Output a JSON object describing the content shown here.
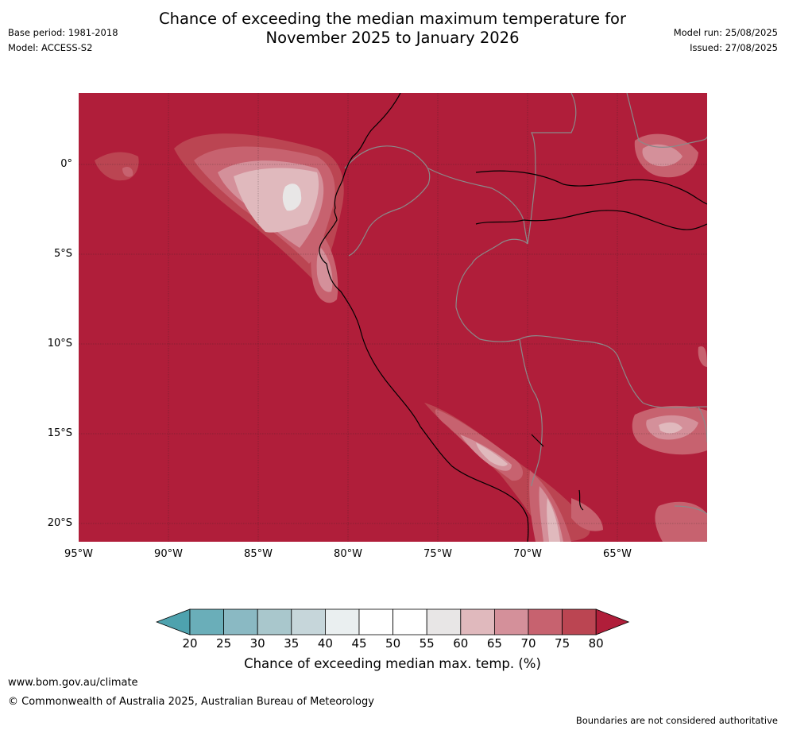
{
  "title_line1": "Chance of exceeding the median maximum temperature for",
  "title_line2": "November 2025 to January 2026",
  "meta_left": {
    "base_period": "Base period: 1981-2018",
    "model": "Model: ACCESS-S2"
  },
  "meta_right": {
    "model_run": "Model run: 25/08/2025",
    "issued": "Issued: 27/08/2025"
  },
  "lat_labels": [
    "0°",
    "5°S",
    "10°S",
    "15°S",
    "20°S"
  ],
  "lon_labels": [
    "95°W",
    "90°W",
    "85°W",
    "80°W",
    "75°W",
    "70°W",
    "65°W"
  ],
  "colorbar": {
    "ticks": [
      "20",
      "25",
      "30",
      "35",
      "40",
      "45",
      "50",
      "55",
      "60",
      "65",
      "70",
      "75",
      "80"
    ],
    "colors": [
      "#4ea2ae",
      "#6aaeb9",
      "#8ab9c3",
      "#a9c7cc",
      "#c6d6da",
      "#eaeff0",
      "#ffffff",
      "#ffffff",
      "#e8e6e6",
      "#e0b9bd",
      "#d4909a",
      "#c7626f",
      "#bb4552",
      "#b01e3a"
    ],
    "label": "Chance of exceeding median max. temp. (%)"
  },
  "footer": {
    "url": "www.bom.gov.au/climate",
    "copyright": "© Commonwealth of Australia 2025, Australian Bureau of Meteorology",
    "note": "Boundaries are not considered authoritative"
  },
  "map": {
    "background_color": "#b01e3a"
  }
}
